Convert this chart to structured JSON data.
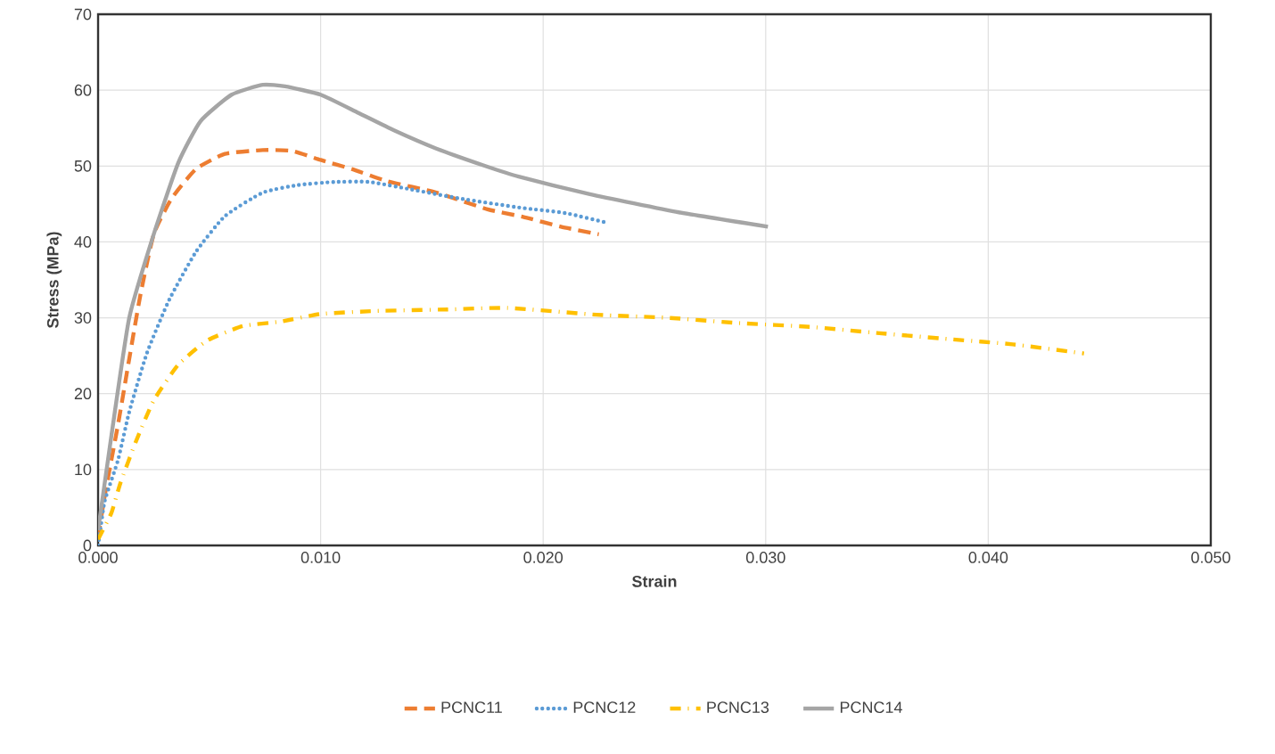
{
  "chart_data": {
    "type": "line",
    "xlabel": "Strain",
    "ylabel": "Stress (MPa)",
    "xlim": [
      0,
      0.05
    ],
    "ylim": [
      0,
      70
    ],
    "xticks": [
      {
        "value": 0,
        "label": "0.000"
      },
      {
        "value": 0.01,
        "label": "0.010"
      },
      {
        "value": 0.02,
        "label": "0.020"
      },
      {
        "value": 0.03,
        "label": "0.030"
      },
      {
        "value": 0.04,
        "label": "0.040"
      },
      {
        "value": 0.05,
        "label": "0.050"
      }
    ],
    "yticks": [
      0,
      10,
      20,
      30,
      40,
      50,
      60,
      70
    ],
    "grid": true,
    "legend": "bottom",
    "marker": "none",
    "series": [
      {
        "name": "PCNC11",
        "color": "#ed7d31",
        "line_style": "dashed",
        "x": [
          0,
          0.0003,
          0.0009,
          0.0014,
          0.0019,
          0.0025,
          0.0033,
          0.0044,
          0.0057,
          0.0074,
          0.0087,
          0.01,
          0.0114,
          0.013,
          0.0152,
          0.0175,
          0.0191,
          0.0208,
          0.0225
        ],
        "values": [
          1,
          6.6,
          16,
          24.6,
          33,
          41,
          45.7,
          49.6,
          51.6,
          52.1,
          52,
          50.8,
          49.6,
          48,
          46.5,
          44.3,
          43.3,
          42,
          41
        ]
      },
      {
        "name": "PCNC12",
        "color": "#5b9bd5",
        "line_style": "dotted",
        "x": [
          0,
          0.0001,
          0.0003,
          0.0009,
          0.0014,
          0.0022,
          0.0032,
          0.0044,
          0.0057,
          0.0074,
          0.009,
          0.0106,
          0.0122,
          0.0141,
          0.0163,
          0.019,
          0.021,
          0.0229
        ],
        "values": [
          0,
          2,
          5.9,
          11.3,
          17.6,
          25.4,
          32.4,
          38.7,
          43.4,
          46.5,
          47.5,
          47.9,
          47.9,
          46.9,
          45.7,
          44.5,
          43.8,
          42.5
        ]
      },
      {
        "name": "PCNC13",
        "color": "#ffc000",
        "line_style": "dashdot",
        "x": [
          0,
          0.0006,
          0.001,
          0.0017,
          0.0025,
          0.0036,
          0.0049,
          0.0065,
          0.0082,
          0.01,
          0.0125,
          0.0157,
          0.0184,
          0.0224,
          0.0256,
          0.0288,
          0.032,
          0.035,
          0.0382,
          0.0411,
          0.0443
        ],
        "values": [
          0.8,
          4.3,
          8.2,
          13.7,
          19.1,
          23.8,
          27,
          28.9,
          29.5,
          30.5,
          30.9,
          31.1,
          31.3,
          30.4,
          30,
          29.3,
          28.8,
          28,
          27.2,
          26.5,
          25.3
        ]
      },
      {
        "name": "PCNC14",
        "color": "#a5a5a5",
        "line_style": "solid",
        "x": [
          0,
          0.0006,
          0.0014,
          0.0025,
          0.0036,
          0.0046,
          0.006,
          0.0074,
          0.0084,
          0.01,
          0.0117,
          0.0133,
          0.0152,
          0.0174,
          0.0189,
          0.0221,
          0.0261,
          0.0301
        ],
        "values": [
          2,
          14.5,
          30,
          41,
          50.4,
          55.9,
          59.4,
          60.7,
          60.5,
          59.4,
          57,
          54.7,
          52.3,
          50,
          48.6,
          46.3,
          43.9,
          42
        ]
      }
    ]
  }
}
